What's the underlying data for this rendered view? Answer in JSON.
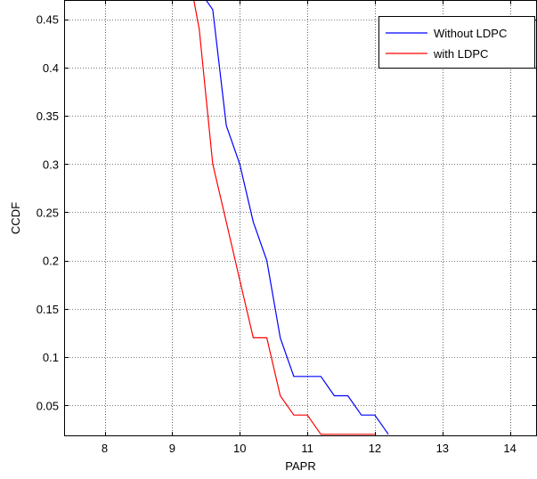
{
  "chart_data": {
    "type": "line",
    "title": "",
    "xlabel": "PAPR",
    "ylabel": "CCDF",
    "xlim": [
      7.4,
      14.4
    ],
    "ylim": [
      0.018,
      0.47
    ],
    "xticks": [
      8,
      9,
      10,
      11,
      12,
      13,
      14
    ],
    "xtick_labels": [
      "8",
      "9",
      "10",
      "11",
      "12",
      "13",
      "14"
    ],
    "yticks": [
      0.05,
      0.1,
      0.15,
      0.2,
      0.25,
      0.3,
      0.35,
      0.4,
      0.45
    ],
    "ytick_labels": [
      "0.05",
      "0.1",
      "0.15",
      "0.2",
      "0.25",
      "0.3",
      "0.35",
      "0.4",
      "0.45"
    ],
    "grid": "dotted",
    "legend_position": "top-right",
    "series": [
      {
        "name": "Without LDPC",
        "color": "#0000ff",
        "x": [
          9.5,
          9.6,
          9.8,
          10.0,
          10.2,
          10.4,
          10.6,
          10.8,
          11.0,
          11.2,
          11.4,
          11.6,
          11.8,
          12.0,
          12.2
        ],
        "y": [
          0.47,
          0.46,
          0.34,
          0.3,
          0.24,
          0.2,
          0.12,
          0.08,
          0.08,
          0.08,
          0.06,
          0.06,
          0.04,
          0.04,
          0.02
        ]
      },
      {
        "name": "with LDPC",
        "color": "#ff0000",
        "x": [
          9.32,
          9.4,
          9.6,
          9.8,
          10.0,
          10.2,
          10.4,
          10.6,
          10.8,
          11.0,
          11.2,
          11.4,
          11.6,
          11.8,
          12.0
        ],
        "y": [
          0.47,
          0.44,
          0.3,
          0.24,
          0.18,
          0.12,
          0.12,
          0.06,
          0.04,
          0.04,
          0.02,
          0.02,
          0.02,
          0.02,
          0.02
        ]
      }
    ]
  }
}
